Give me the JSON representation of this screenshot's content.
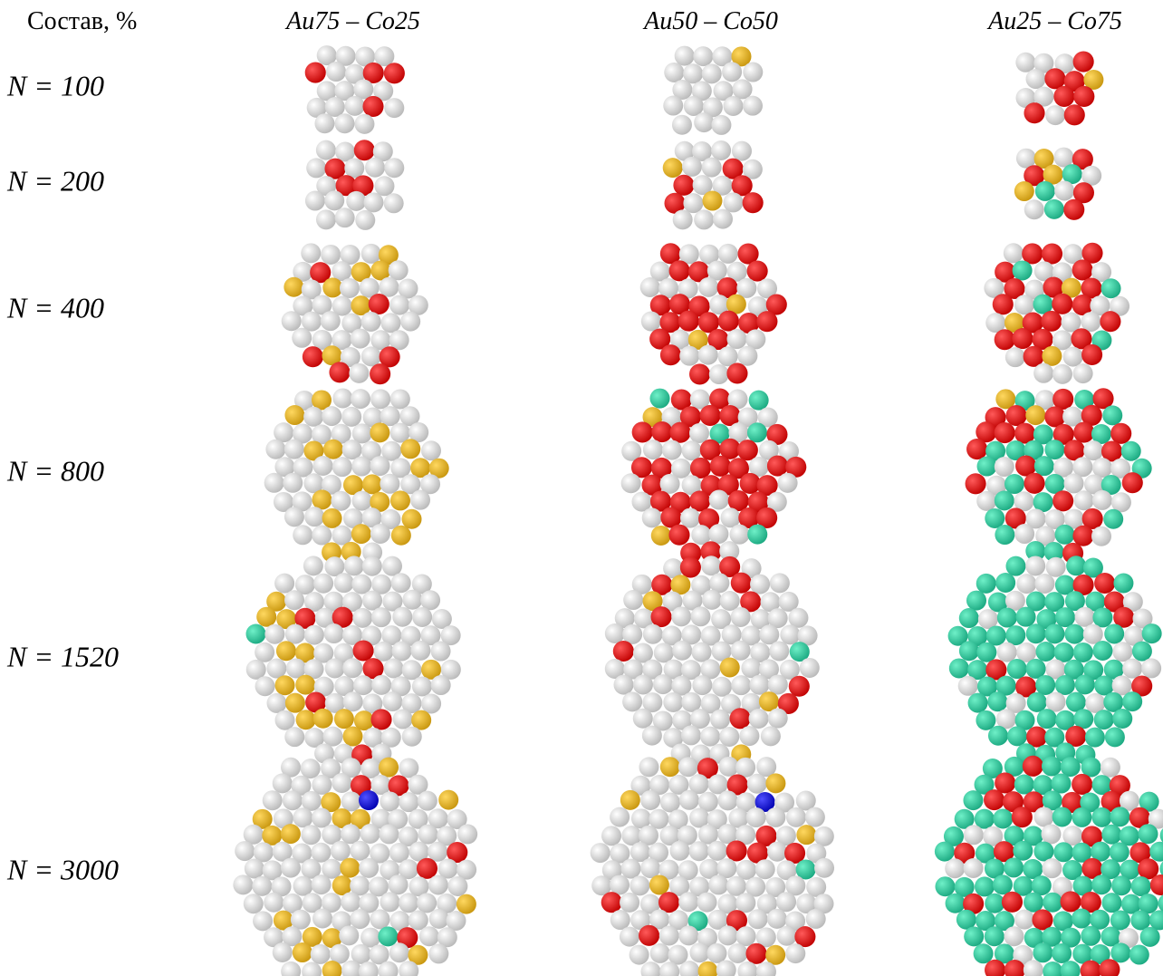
{
  "header": {
    "label": "Состав, %",
    "columns": [
      "Au75 – Co25",
      "Au50 – Co50",
      "Au25 – Co75"
    ]
  },
  "rows": [
    {
      "label": "N = 100"
    },
    {
      "label": "N = 200"
    },
    {
      "label": "N = 400"
    },
    {
      "label": "N = 800"
    },
    {
      "label": "N = 1520"
    },
    {
      "label": "N = 3000"
    }
  ]
}
